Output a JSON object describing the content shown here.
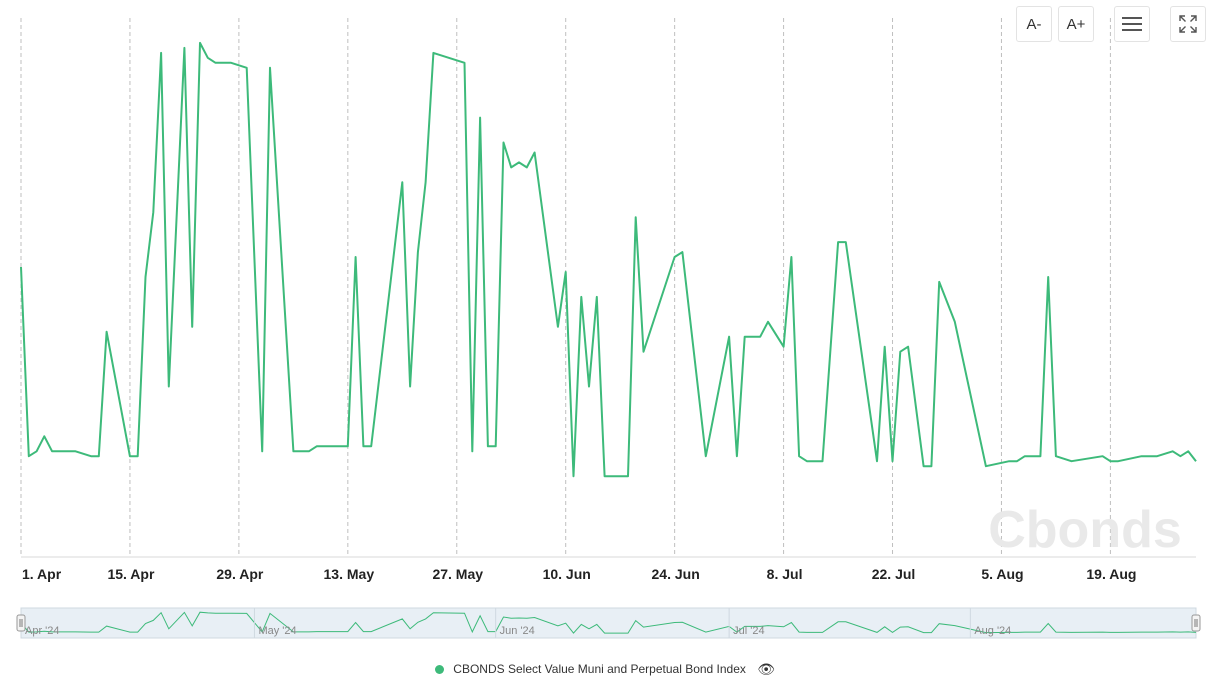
{
  "toolbar": {
    "font_decrease_label": "A-",
    "font_increase_label": "A+",
    "menu_icon": "hamburger-menu-icon",
    "fullscreen_icon": "fullscreen-icon"
  },
  "watermark": "Cbonds",
  "colors": {
    "series": "#3dba7a",
    "grid": "#bfbfbf",
    "navigator_fill": "#e8eff5"
  },
  "chart_data": {
    "type": "line",
    "title": "",
    "xlabel": "",
    "ylabel": "",
    "y_axis_labels_visible": false,
    "grid": "vertical-dashed",
    "x_range": [
      "2024-04-01",
      "2024-08-27"
    ],
    "x_tick_labels": [
      "1. Apr",
      "15. Apr",
      "29. Apr",
      "13. May",
      "27. May",
      "10. Jun",
      "24. Jun",
      "8. Jul",
      "22. Jul",
      "5. Aug",
      "19. Aug"
    ],
    "x_tick_days": [
      0,
      14,
      28,
      42,
      56,
      70,
      84,
      98,
      112,
      126,
      140
    ],
    "ylim": [
      0,
      100
    ],
    "series": [
      {
        "name": "CBONDS Select Value Muni and Perpetual Bond Index",
        "x": [
          0,
          1,
          2,
          3,
          4,
          5,
          7,
          9,
          10,
          11,
          14,
          15,
          16,
          17,
          18,
          19,
          21,
          22,
          23,
          24,
          25,
          27,
          29,
          31,
          32,
          35,
          36,
          37,
          38,
          42,
          43,
          44,
          45,
          49,
          50,
          51,
          52,
          53,
          57,
          58,
          59,
          60,
          61,
          62,
          63,
          64,
          65,
          66,
          69,
          70,
          71,
          72,
          73,
          74,
          75,
          76,
          77,
          78,
          79,
          80,
          84,
          85,
          88,
          91,
          92,
          93,
          94,
          95,
          96,
          98,
          99,
          100,
          101,
          102,
          103,
          105,
          106,
          110,
          111,
          112,
          113,
          114,
          116,
          117,
          118,
          120,
          124,
          127,
          128,
          129,
          131,
          132,
          133,
          135,
          139,
          140,
          141,
          144,
          146,
          148,
          149,
          150,
          151
        ],
        "values": [
          50,
          12,
          13,
          16,
          13,
          13,
          13,
          12,
          12,
          37,
          12,
          12,
          48,
          61,
          93,
          26,
          94,
          38,
          95,
          92,
          91,
          91,
          90,
          13,
          90,
          13,
          13,
          13,
          14,
          14,
          52,
          14,
          14,
          67,
          26,
          53,
          67,
          93,
          91,
          13,
          80,
          14,
          14,
          75,
          70,
          71,
          70,
          73,
          38,
          49,
          8,
          44,
          26,
          44,
          8,
          8,
          8,
          8,
          60,
          33,
          52,
          53,
          12,
          36,
          12,
          36,
          36,
          36,
          39,
          34,
          52,
          12,
          11,
          11,
          11,
          55,
          55,
          11,
          34,
          11,
          33,
          34,
          10,
          10,
          47,
          39,
          10,
          11,
          11,
          12,
          12,
          48,
          12,
          11,
          12,
          11,
          11,
          12,
          12,
          13,
          12,
          13,
          11
        ]
      }
    ],
    "legend": {
      "position": "bottom-center",
      "entries": [
        "CBONDS Select Value Muni and Perpetual Bond Index"
      ]
    },
    "navigator": {
      "labels": [
        "Apr '24",
        "May '24",
        "Jun '24",
        "Jul '24",
        "Aug '24"
      ],
      "label_days": [
        0,
        30,
        61,
        91,
        122
      ]
    }
  }
}
